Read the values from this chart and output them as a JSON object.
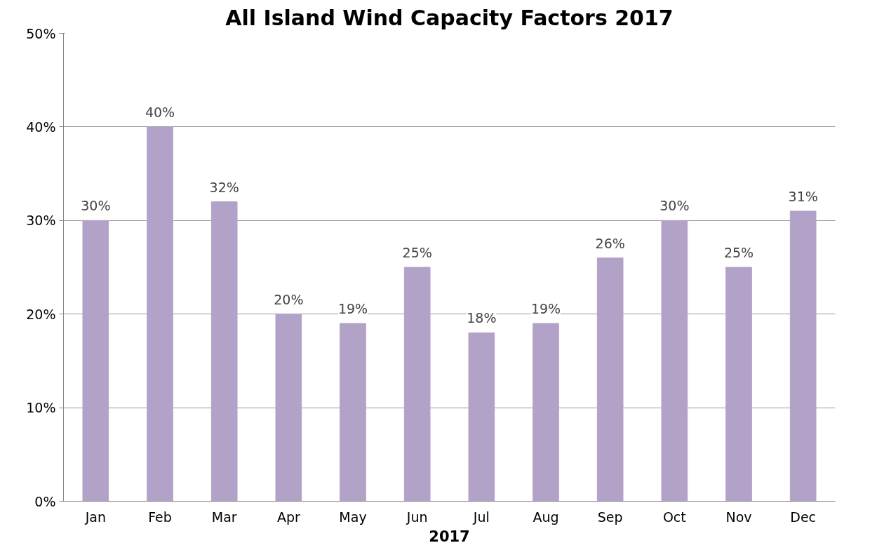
{
  "chart_data": {
    "type": "bar",
    "title": "All Island Wind Capacity Factors 2017",
    "xlabel": "2017",
    "categories": [
      "Jan",
      "Feb",
      "Mar",
      "Apr",
      "May",
      "Jun",
      "Jul",
      "Aug",
      "Sep",
      "Oct",
      "Nov",
      "Dec"
    ],
    "values": [
      30,
      40,
      32,
      20,
      19,
      25,
      18,
      19,
      26,
      30,
      25,
      31
    ],
    "value_labels": [
      "30%",
      "40%",
      "32%",
      "20%",
      "19%",
      "25%",
      "18%",
      "19%",
      "26%",
      "30%",
      "25%",
      "31%"
    ],
    "color": "#b3a2c7",
    "ylim": [
      0,
      50
    ],
    "yticks": [
      {
        "value": 0,
        "label": "0%"
      },
      {
        "value": 10,
        "label": "10%"
      },
      {
        "value": 20,
        "label": "20%"
      },
      {
        "value": 30,
        "label": "30%"
      },
      {
        "value": 40,
        "label": "40%"
      },
      {
        "value": 50,
        "label": "50%"
      }
    ],
    "grid": "y"
  }
}
